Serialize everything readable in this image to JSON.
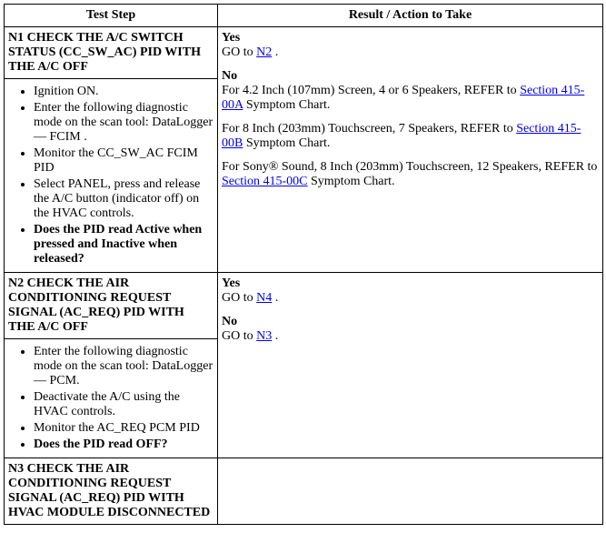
{
  "headers": {
    "left": "Test Step",
    "right": "Result / Action to Take"
  },
  "n1": {
    "title": "N1 CHECK THE A/C SWITCH STATUS (CC_SW_AC) PID WITH THE A/C OFF",
    "bullets": [
      "Ignition ON.",
      "Enter the following diagnostic mode on the scan tool: DataLogger — FCIM .",
      "Monitor the CC_SW_AC FCIM PID",
      "Select PANEL, press and release the A/C button (indicator off) on the HVAC controls."
    ],
    "question": "Does the PID read Active when pressed and Inactive when released?",
    "yes_label": "Yes",
    "yes_prefix": "GO to ",
    "yes_link": "N2",
    "yes_suffix": " .",
    "no_label": "No",
    "no_line1_prefix": "For 4.2 Inch (107mm) Screen, 4 or 6 Speakers, REFER to ",
    "no_line1_link": "Section 415-00A",
    "no_line1_suffix": " Symptom Chart.",
    "no_line2_prefix": "For 8 Inch (203mm) Touchscreen, 7 Speakers, REFER to ",
    "no_line2_link": "Section 415-00B",
    "no_line2_suffix": " Symptom Chart.",
    "no_line3_prefix": "For Sony® Sound, 8 Inch (203mm) Touchscreen, 12 Speakers, REFER to ",
    "no_line3_link": "Section 415-00C",
    "no_line3_suffix": " Symptom Chart."
  },
  "n2": {
    "title": "N2 CHECK THE AIR CONDITIONING REQUEST SIGNAL (AC_REQ) PID WITH THE A/C OFF",
    "bullets": [
      "Enter the following diagnostic mode on the scan tool: DataLogger — PCM.",
      "Deactivate the A/C using the HVAC controls.",
      "Monitor the AC_REQ PCM PID"
    ],
    "question": "Does the PID read OFF?",
    "yes_label": "Yes",
    "yes_prefix": "GO to ",
    "yes_link": "N4",
    "yes_suffix": " .",
    "no_label": "No",
    "no_prefix": "GO to ",
    "no_link": "N3",
    "no_suffix": " ."
  },
  "n3": {
    "title": "N3 CHECK THE AIR CONDITIONING REQUEST SIGNAL (AC_REQ) PID WITH HVAC MODULE DISCONNECTED"
  }
}
